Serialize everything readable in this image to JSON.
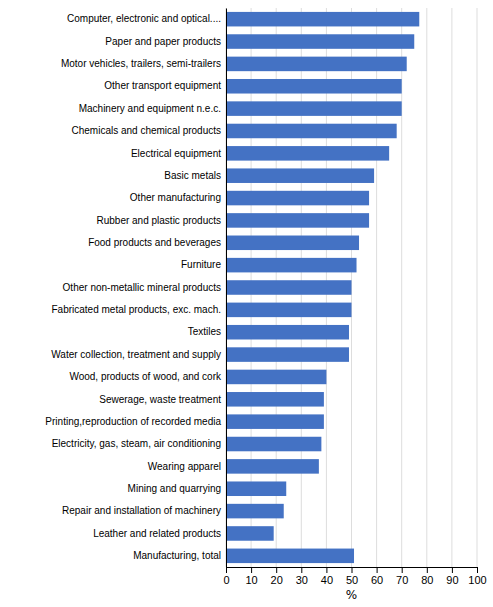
{
  "chart_data": {
    "type": "bar",
    "orientation": "horizontal",
    "categories": [
      "Computer, electronic and optical....",
      "Paper and paper products",
      "Motor vehicles, trailers, semi-trailers",
      "Other transport equipment",
      "Machinery and equipment n.e.c.",
      "Chemicals and chemical products",
      "Electrical equipment",
      "Basic metals",
      "Other manufacturing",
      "Rubber and plastic products",
      "Food products and beverages",
      "Furniture",
      "Other non-metallic mineral products",
      "Fabricated metal  products, exc. mach.",
      "Textiles",
      "Water collection, treatment and supply",
      "Wood, products of wood, and cork",
      "Sewerage, waste treatment",
      "Printing,reproduction of recorded media",
      "Electricity, gas, steam, air conditioning",
      "Wearing apparel",
      "Mining and quarrying",
      "Repair and installation  of machinery",
      "Leather and related products",
      "Manufacturing, total"
    ],
    "values": [
      77,
      75,
      72,
      70,
      70,
      68,
      65,
      59,
      57,
      57,
      53,
      52,
      50,
      50,
      49,
      49,
      40,
      39,
      39,
      38,
      37,
      24,
      23,
      19,
      51
    ],
    "color": "#4472C4",
    "xlabel": "%",
    "xlim": [
      0,
      100
    ],
    "xticks": [
      0,
      10,
      20,
      30,
      40,
      50,
      60,
      70,
      80,
      90,
      100
    ],
    "grid": true
  }
}
